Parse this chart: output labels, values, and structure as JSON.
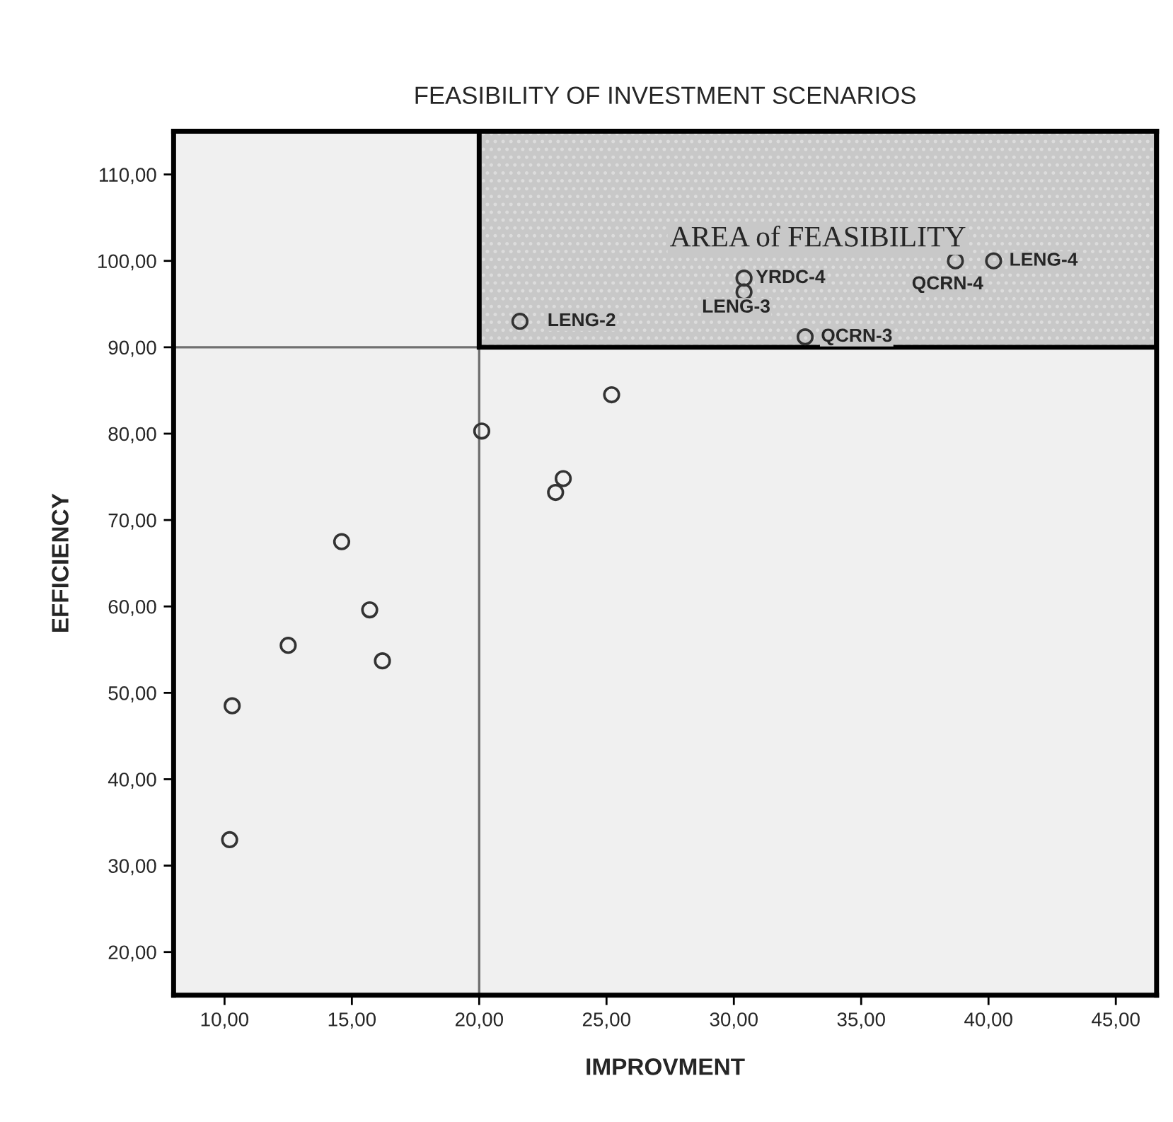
{
  "chart_data": {
    "type": "scatter",
    "title": "FEASIBILITY OF INVESTMENT SCENARIOS",
    "xlabel": "IMPROVMENT",
    "ylabel": "EFFICIENCY",
    "x": [
      10.2,
      10.3,
      12.5,
      14.6,
      15.7,
      16.2,
      20.1,
      23.0,
      23.3,
      25.2,
      21.6,
      30.4,
      30.4,
      32.8,
      38.7,
      40.2
    ],
    "values": [
      33.0,
      48.5,
      55.5,
      67.5,
      59.6,
      53.7,
      80.3,
      73.2,
      74.8,
      84.5,
      93.0,
      98.0,
      96.4,
      91.2,
      100.0,
      100.0
    ],
    "color": "#333333",
    "marker": "circle",
    "xlim": [
      8,
      46.6
    ],
    "ylim": [
      15,
      115
    ],
    "xticks": [
      {
        "value": 10,
        "label": "10,00"
      },
      {
        "value": 15,
        "label": "15,00"
      },
      {
        "value": 20,
        "label": "20,00"
      },
      {
        "value": 25,
        "label": "25,00"
      },
      {
        "value": 30,
        "label": "30,00"
      },
      {
        "value": 35,
        "label": "35,00"
      },
      {
        "value": 40,
        "label": "40,00"
      },
      {
        "value": 45,
        "label": "45,00"
      }
    ],
    "yticks": [
      {
        "value": 20,
        "label": "20,00"
      },
      {
        "value": 30,
        "label": "30,00"
      },
      {
        "value": 40,
        "label": "40,00"
      },
      {
        "value": 50,
        "label": "50,00"
      },
      {
        "value": 60,
        "label": "60,00"
      },
      {
        "value": 70,
        "label": "70,00"
      },
      {
        "value": 80,
        "label": "80,00"
      },
      {
        "value": 90,
        "label": "90,00"
      },
      {
        "value": 100,
        "label": "100,00"
      },
      {
        "value": 110,
        "label": "110,00"
      }
    ],
    "ref_lines": [
      {
        "axis": "x",
        "value": 20,
        "color": "#707070"
      },
      {
        "axis": "y",
        "value": 90,
        "color": "#707070"
      }
    ],
    "bands": [
      {
        "axis": "x",
        "from": 20,
        "to": 46.6,
        "color": "#c8c8c8"
      }
    ],
    "annotations": [
      "AREA of FEASIBILITY",
      {
        "text": "LENG-2",
        "x": 21.6,
        "y": 93.0
      },
      {
        "text": "YRDC-4",
        "x": 30.4,
        "y": 98.0
      },
      {
        "text": "LENG-3",
        "x": 30.4,
        "y": 96.4
      },
      {
        "text": "QCRN-3",
        "x": 32.8,
        "y": 91.2
      },
      {
        "text": "QCRN-4",
        "x": 38.7,
        "y": 100.0
      },
      {
        "text": "LENG-4",
        "x": 40.2,
        "y": 100.0
      }
    ],
    "grid": false,
    "legend": false
  }
}
